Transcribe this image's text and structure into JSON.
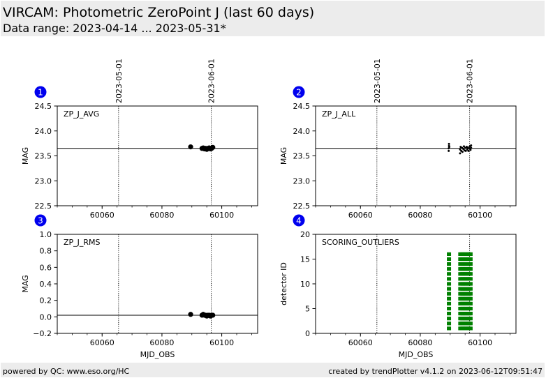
{
  "header": {
    "title": "VIRCAM: Photometric ZeroPoint J (last 60 days)",
    "subtitle": "Data range: 2023-04-14 ... 2023-05-31*"
  },
  "footer": {
    "left": "powered by QC: www.eso.org/HC",
    "right": "created by trendPlotter v4.1.2 on 2023-06-12T09:51:47"
  },
  "colors": {
    "header_bg": "#ececec",
    "badge": "#0000ee",
    "points": "#000000",
    "bars": "#008000"
  },
  "date_markers": [
    {
      "label": "2023-05-01",
      "mjd": 60065.5
    },
    {
      "label": "2023-06-01",
      "mjd": 60096.5
    }
  ],
  "chart_data": [
    {
      "id": "1",
      "type": "scatter",
      "label": "ZP_J_AVG",
      "xlabel": "",
      "ylabel": "MAG",
      "xlim": [
        60045,
        60112
      ],
      "ylim": [
        22.5,
        24.5
      ],
      "yticks": [
        "22.5",
        "23.0",
        "23.5",
        "24.0",
        "24.5"
      ],
      "xticks": [
        "60060",
        "60080",
        "60100"
      ],
      "reference_y": 23.65,
      "marker": "dot",
      "x": [
        60089.6,
        60093.4,
        60093.8,
        60094.2,
        60094.6,
        60095.0,
        60095.4,
        60095.8,
        60096.2,
        60096.6,
        60097.0
      ],
      "y": [
        23.68,
        23.65,
        23.66,
        23.64,
        23.65,
        23.63,
        23.65,
        23.66,
        23.64,
        23.65,
        23.67
      ]
    },
    {
      "id": "2",
      "type": "scatter",
      "label": "ZP_J_ALL",
      "xlabel": "",
      "ylabel": "MAG",
      "xlim": [
        60045,
        60112
      ],
      "ylim": [
        22.5,
        24.5
      ],
      "yticks": [
        "22.5",
        "23.0",
        "23.5",
        "24.0",
        "24.5"
      ],
      "xticks": [
        "60060",
        "60080",
        "60100"
      ],
      "reference_y": 23.65,
      "marker": "small",
      "x": [
        60089.5,
        60089.5,
        60089.6,
        60089.6,
        60089.7,
        60093.3,
        60093.3,
        60093.5,
        60093.7,
        60094.0,
        60094.1,
        60094.4,
        60094.6,
        60094.8,
        60095.0,
        60095.2,
        60095.5,
        60095.7,
        60095.9,
        60096.1,
        60096.4,
        60096.6,
        60096.8,
        60097.0,
        60097.0
      ],
      "y": [
        23.6,
        23.65,
        23.7,
        23.74,
        23.68,
        23.55,
        23.63,
        23.68,
        23.6,
        23.66,
        23.58,
        23.64,
        23.69,
        23.61,
        23.66,
        23.6,
        23.68,
        23.63,
        23.67,
        23.6,
        23.65,
        23.69,
        23.62,
        23.66,
        23.71
      ]
    },
    {
      "id": "3",
      "type": "scatter",
      "label": "ZP_J_RMS",
      "xlabel": "MJD_OBS",
      "ylabel": "MAG",
      "xlim": [
        60045,
        60112
      ],
      "ylim": [
        -0.2,
        1.0
      ],
      "yticks": [
        "−0.2",
        "0.0",
        "0.2",
        "0.4",
        "0.6",
        "0.8",
        "1.0"
      ],
      "xticks": [
        "60060",
        "60080",
        "60100"
      ],
      "reference_y": 0.02,
      "marker": "dot",
      "x": [
        60089.6,
        60093.4,
        60093.8,
        60094.2,
        60094.6,
        60095.0,
        60095.4,
        60095.8,
        60096.2,
        60096.6,
        60097.0
      ],
      "y": [
        0.03,
        0.02,
        0.03,
        0.02,
        0.02,
        0.01,
        0.02,
        0.02,
        0.01,
        0.02,
        0.02
      ]
    },
    {
      "id": "4",
      "type": "scatter",
      "label": "SCORING_OUTLIERS",
      "xlabel": "MJD_OBS",
      "ylabel": "detector ID",
      "xlim": [
        60045,
        60112
      ],
      "ylim": [
        0,
        20
      ],
      "yticks": [
        "0",
        "5",
        "10",
        "15",
        "20"
      ],
      "xticks": [
        "60060",
        "60080",
        "60100"
      ],
      "marker": "square",
      "columns_x": [
        60089.6,
        60093.4,
        60093.9,
        60094.4,
        60094.9,
        60095.4,
        60095.9,
        60096.4,
        60096.8
      ],
      "detectors": [
        1,
        2,
        3,
        4,
        5,
        6,
        7,
        8,
        9,
        10,
        11,
        12,
        13,
        14,
        15,
        16
      ]
    }
  ]
}
